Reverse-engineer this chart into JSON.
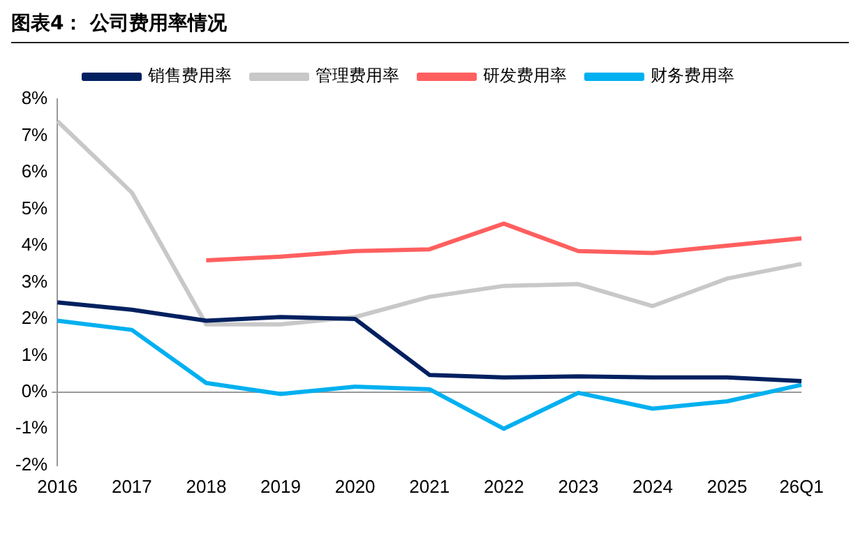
{
  "chart_data": {
    "type": "line",
    "title": "图表4：  公司费用率情况",
    "categories": [
      "2016",
      "2017",
      "2018",
      "2019",
      "2020",
      "2021",
      "2022",
      "2023",
      "2024",
      "2025",
      "26Q1"
    ],
    "series": [
      {
        "name": "销售费用率",
        "color": "#002060",
        "values": [
          2.45,
          2.25,
          1.95,
          2.05,
          2.0,
          0.47,
          0.4,
          0.43,
          0.4,
          0.4,
          0.3
        ]
      },
      {
        "name": "管理费用率",
        "color": "#c8c8c8",
        "values": [
          7.4,
          5.45,
          1.85,
          1.85,
          2.05,
          2.6,
          2.9,
          2.95,
          2.35,
          3.1,
          3.5
        ]
      },
      {
        "name": "研发费用率",
        "color": "#ff5f5f",
        "values": [
          null,
          null,
          3.6,
          3.7,
          3.85,
          3.9,
          4.6,
          3.85,
          3.8,
          4.0,
          4.2
        ]
      },
      {
        "name": "财务费用率",
        "color": "#00b0f0",
        "values": [
          1.95,
          1.7,
          0.25,
          -0.05,
          0.15,
          0.08,
          -1.0,
          -0.02,
          -0.45,
          -0.25,
          0.2
        ]
      }
    ],
    "ylim": [
      -2,
      8
    ],
    "yticks": [
      {
        "value": -2,
        "label": "-2%"
      },
      {
        "value": -1,
        "label": "-1%"
      },
      {
        "value": 0,
        "label": "0%"
      },
      {
        "value": 1,
        "label": "1%"
      },
      {
        "value": 2,
        "label": "2%"
      },
      {
        "value": 3,
        "label": "3%"
      },
      {
        "value": 4,
        "label": "4%"
      },
      {
        "value": 5,
        "label": "5%"
      },
      {
        "value": 6,
        "label": "6%"
      },
      {
        "value": 7,
        "label": "7%"
      },
      {
        "value": 8,
        "label": "8%"
      }
    ],
    "legend": "top",
    "marker": "none"
  }
}
